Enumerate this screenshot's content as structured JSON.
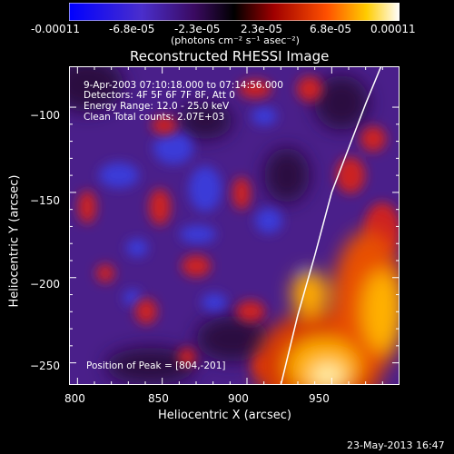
{
  "colorbar": {
    "tick_labels": [
      "-0.00011",
      "-6.8e-05",
      "-2.3e-05",
      "2.3e-05",
      "6.8e-05",
      "0.00011"
    ],
    "units_label": "(photons cm⁻² s⁻¹ asec⁻²)"
  },
  "chart_data": {
    "type": "heatmap",
    "title": "Reconstructed RHESSI Image",
    "xlabel": "Heliocentric X (arcsec)",
    "ylabel": "Heliocentric Y (arcsec)",
    "xlim": [
      795,
      990
    ],
    "ylim": [
      -263,
      -76
    ],
    "x_ticks": [
      800,
      850,
      900,
      950
    ],
    "y_ticks": [
      -100,
      -150,
      -200,
      -250
    ],
    "x_tick_labels": [
      "800",
      "850",
      "900",
      "950"
    ],
    "y_tick_labels": [
      "−100",
      "−150",
      "−200",
      "−250"
    ],
    "colorbar_range": [
      -0.00011,
      0.00011
    ],
    "colorscale": "blue-purple-red-yellow-white",
    "limb_curve": {
      "x": [
        920,
        930,
        940,
        950,
        960,
        970,
        980
      ],
      "y": [
        -263,
        -222,
        -187,
        -150,
        -124,
        -98,
        -74
      ]
    },
    "annotations": {
      "time": "9-Apr-2003 07:10:18.000 to 07:14:56.000",
      "detectors": "Detectors: 4F 5F 6F 7F 8F, Att 0",
      "energy": "Energy Range: 12.0 - 25.0 keV",
      "clean": "Clean     Total counts: 2.07E+03",
      "peak": "Position of Peak = [804,-201]"
    }
  },
  "footer": {
    "date": "23-May-2013 16:47"
  }
}
